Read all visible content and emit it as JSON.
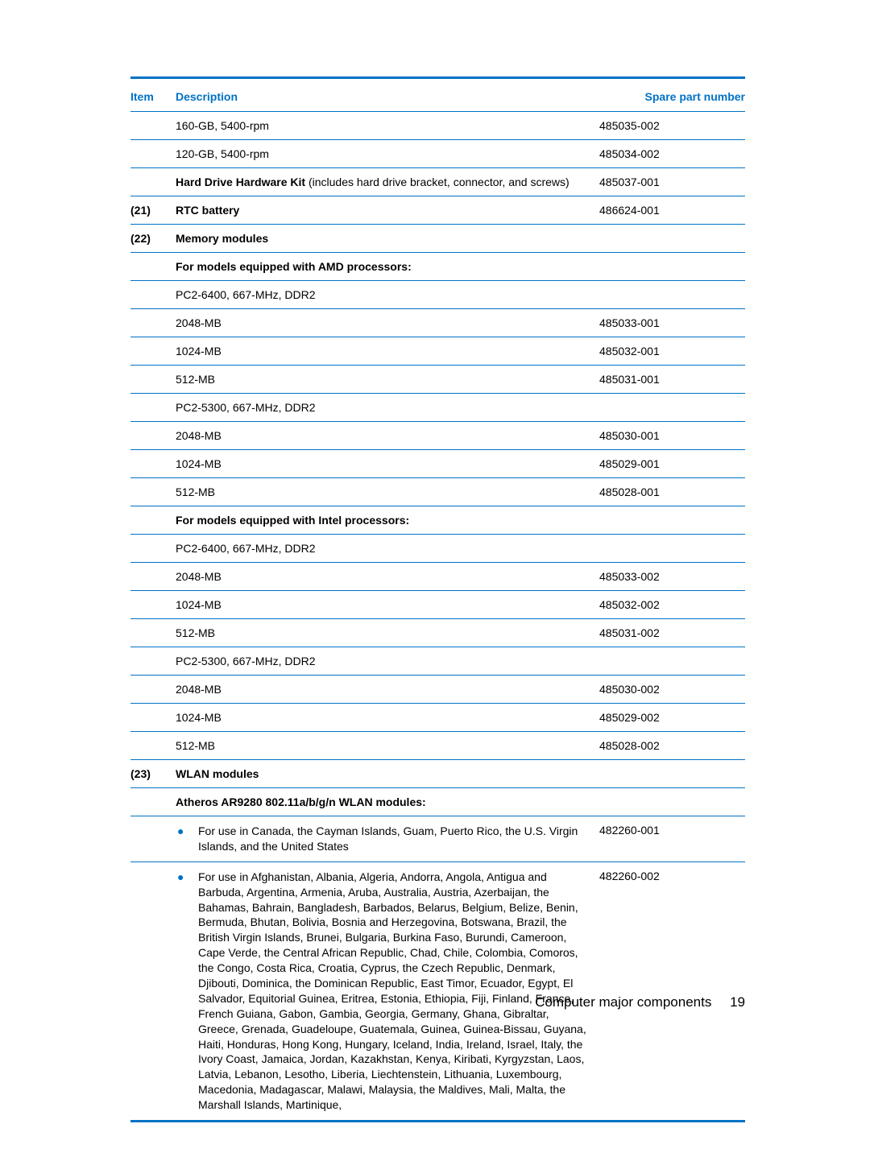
{
  "headers": {
    "item": "Item",
    "description": "Description",
    "spn": "Spare part number"
  },
  "rows": [
    {
      "item": "",
      "desc": "160-GB, 5400-rpm",
      "spn": "485035-002",
      "bold": false
    },
    {
      "item": "",
      "desc": "120-GB, 5400-rpm",
      "spn": "485034-002",
      "bold": false
    },
    {
      "item": "",
      "desc_markup": "<span class='bold'>Hard Drive Hardware Kit</span> (includes hard drive bracket, connector, and screws)",
      "spn": "485037-001",
      "bold": false
    },
    {
      "item": "(21)",
      "desc": "RTC battery",
      "spn": "486624-001",
      "bold": true
    },
    {
      "item": "(22)",
      "desc": "Memory modules",
      "spn": "",
      "bold": true
    },
    {
      "item": "",
      "desc": "For models equipped with AMD processors:",
      "spn": "",
      "bold": true
    },
    {
      "item": "",
      "desc": "PC2-6400, 667-MHz, DDR2",
      "spn": "",
      "bold": false
    },
    {
      "item": "",
      "desc": "2048-MB",
      "spn": "485033-001",
      "bold": false
    },
    {
      "item": "",
      "desc": "1024-MB",
      "spn": "485032-001",
      "bold": false
    },
    {
      "item": "",
      "desc": "512-MB",
      "spn": "485031-001",
      "bold": false
    },
    {
      "item": "",
      "desc": "PC2-5300, 667-MHz, DDR2",
      "spn": "",
      "bold": false
    },
    {
      "item": "",
      "desc": "2048-MB",
      "spn": "485030-001",
      "bold": false
    },
    {
      "item": "",
      "desc": "1024-MB",
      "spn": "485029-001",
      "bold": false
    },
    {
      "item": "",
      "desc": "512-MB",
      "spn": "485028-001",
      "bold": false
    },
    {
      "item": "",
      "desc": "For models equipped with Intel processors:",
      "spn": "",
      "bold": true
    },
    {
      "item": "",
      "desc": "PC2-6400, 667-MHz, DDR2",
      "spn": "",
      "bold": false
    },
    {
      "item": "",
      "desc": "2048-MB",
      "spn": "485033-002",
      "bold": false
    },
    {
      "item": "",
      "desc": "1024-MB",
      "spn": "485032-002",
      "bold": false
    },
    {
      "item": "",
      "desc": "512-MB",
      "spn": "485031-002",
      "bold": false
    },
    {
      "item": "",
      "desc": "PC2-5300, 667-MHz, DDR2",
      "spn": "",
      "bold": false
    },
    {
      "item": "",
      "desc": "2048-MB",
      "spn": "485030-002",
      "bold": false
    },
    {
      "item": "",
      "desc": "1024-MB",
      "spn": "485029-002",
      "bold": false
    },
    {
      "item": "",
      "desc": "512-MB",
      "spn": "485028-002",
      "bold": false
    },
    {
      "item": "(23)",
      "desc": "WLAN modules",
      "spn": "",
      "bold": true
    },
    {
      "item": "",
      "desc": "Atheros AR9280 802.11a/b/g/n WLAN modules:",
      "spn": "",
      "bold": true
    },
    {
      "item": "",
      "bullet": true,
      "desc": "For use in Canada, the Cayman Islands, Guam, Puerto Rico, the U.S. Virgin Islands, and the United States",
      "spn": "482260-001",
      "bold": false
    },
    {
      "item": "",
      "bullet": true,
      "last": true,
      "desc": "For use in Afghanistan, Albania, Algeria, Andorra, Angola, Antigua and Barbuda, Argentina, Armenia, Aruba, Australia, Austria, Azerbaijan, the Bahamas, Bahrain, Bangladesh, Barbados, Belarus, Belgium, Belize, Benin, Bermuda, Bhutan, Bolivia, Bosnia and Herzegovina, Botswana, Brazil, the British Virgin Islands, Brunei, Bulgaria, Burkina Faso, Burundi, Cameroon, Cape Verde, the Central African Republic, Chad, Chile, Colombia, Comoros, the Congo, Costa Rica, Croatia, Cyprus, the Czech Republic, Denmark, Djibouti, Dominica, the Dominican Republic, East Timor, Ecuador, Egypt, El Salvador, Equitorial Guinea, Eritrea, Estonia, Ethiopia, Fiji, Finland, France, French Guiana, Gabon, Gambia, Georgia, Germany, Ghana, Gibraltar, Greece, Grenada, Guadeloupe, Guatemala, Guinea, Guinea-Bissau, Guyana, Haiti, Honduras, Hong Kong, Hungary, Iceland, India, Ireland, Israel, Italy, the Ivory Coast, Jamaica, Jordan, Kazakhstan, Kenya, Kiribati, Kyrgyzstan, Laos, Latvia, Lebanon, Lesotho, Liberia, Liechtenstein, Lithuania, Luxembourg, Macedonia, Madagascar, Malawi, Malaysia, the Maldives, Mali, Malta, the Marshall Islands, Martinique,",
      "spn": "482260-002",
      "bold": false
    }
  ],
  "footer": {
    "section": "Computer major components",
    "page": "19"
  },
  "colors": {
    "accent": "#0072c6",
    "text": "#000000",
    "background": "#ffffff"
  }
}
